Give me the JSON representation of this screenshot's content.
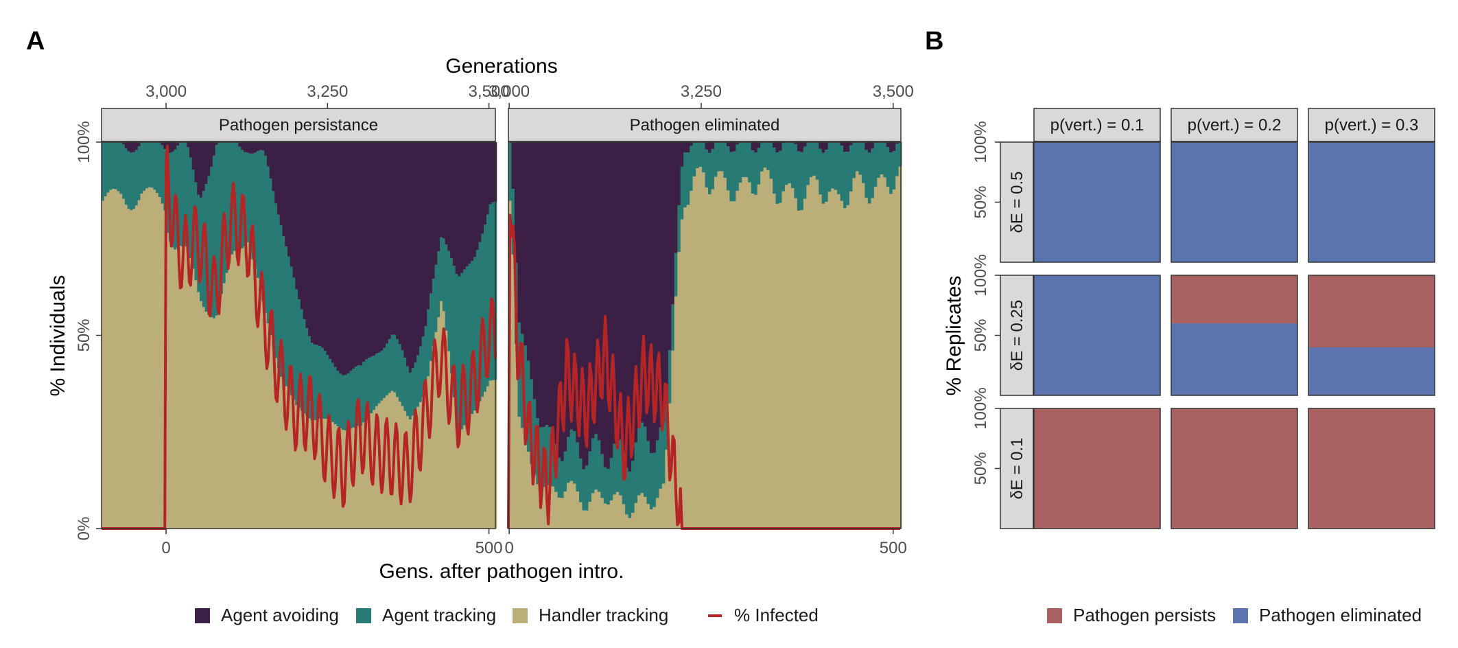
{
  "colors": {
    "agent_avoiding": "#3b1f45",
    "agent_tracking": "#287a74",
    "handler_tracking": "#bcae78",
    "infected": "#b52525",
    "other": "#d9d9d9",
    "pathogen_persists": "#a86060",
    "pathogen_eliminated": "#5c74ad",
    "strip_bg": "#d9d9d9",
    "strip_border": "#333333"
  },
  "panel_labels": [
    "A",
    "B"
  ],
  "panel_a": {
    "top_axis_title": "Generations",
    "top_ticks": [
      "3,000",
      "3,250",
      "3,500"
    ],
    "bottom_axis_title": "Gens. after pathogen intro.",
    "bottom_ticks": [
      "0",
      "500"
    ],
    "y_axis_title": "% Individuals",
    "y_ticks": [
      "0%",
      "50%",
      "100%"
    ],
    "facets": [
      "Pathogen persistance",
      "Pathogen eliminated"
    ],
    "legend": [
      {
        "key": "agent_avoiding",
        "label": "Agent avoiding",
        "kind": "square"
      },
      {
        "key": "agent_tracking",
        "label": "Agent tracking",
        "kind": "square"
      },
      {
        "key": "handler_tracking",
        "label": "Handler tracking",
        "kind": "square"
      },
      {
        "key": "infected",
        "label": "% Infected",
        "kind": "line"
      }
    ]
  },
  "panel_b": {
    "y_axis_title": "% Replicates",
    "y_ticks": [
      "50%",
      "100%"
    ],
    "col_strips": [
      "p(vert.) = 0.1",
      "p(vert.) = 0.2",
      "p(vert.) = 0.3"
    ],
    "row_strips": [
      "δE = 0.5",
      "δE = 0.25",
      "δE = 0.1"
    ],
    "legend": [
      {
        "key": "pathogen_persists",
        "label": "Pathogen persists"
      },
      {
        "key": "pathogen_eliminated",
        "label": "Pathogen eliminated"
      }
    ]
  },
  "chart_data": [
    {
      "type": "bar",
      "subtype": "stacked-100-percent-with-line",
      "panel": "A",
      "facet": "Pathogen persistance",
      "x_label_top": "Generations",
      "x_label_bottom": "Gens. after pathogen intro.",
      "y_label": "% Individuals",
      "xlim_generations": [
        2900,
        3510
      ],
      "pathogen_intro_generation": 3000,
      "ylim": [
        0,
        100
      ],
      "x": [
        2900,
        2950,
        2999,
        3000,
        3010,
        3025,
        3050,
        3075,
        3100,
        3125,
        3150,
        3175,
        3200,
        3225,
        3250,
        3275,
        3300,
        3325,
        3350,
        3375,
        3400,
        3425,
        3450,
        3475,
        3500
      ],
      "series": [
        {
          "name": "Handler tracking",
          "values": [
            85,
            87,
            85,
            80,
            75,
            72,
            60,
            55,
            70,
            78,
            55,
            40,
            32,
            28,
            28,
            26,
            26,
            32,
            36,
            28,
            35,
            62,
            25,
            30,
            38
          ]
        },
        {
          "name": "Agent tracking",
          "values": [
            15,
            13,
            15,
            20,
            25,
            28,
            25,
            45,
            30,
            22,
            40,
            40,
            30,
            20,
            15,
            16,
            14,
            15,
            14,
            12,
            18,
            15,
            40,
            40,
            45
          ]
        },
        {
          "name": "Agent avoiding",
          "values": [
            0,
            0,
            0,
            0,
            0,
            0,
            15,
            0,
            0,
            0,
            5,
            20,
            38,
            52,
            57,
            58,
            60,
            53,
            50,
            60,
            47,
            23,
            35,
            30,
            17
          ]
        },
        {
          "name": "% Infected",
          "type": "line",
          "values": [
            0,
            0,
            0,
            95,
            80,
            70,
            75,
            60,
            80,
            76,
            55,
            40,
            30,
            30,
            20,
            15,
            25,
            20,
            18,
            15,
            28,
            45,
            30,
            36,
            50
          ]
        }
      ]
    },
    {
      "type": "bar",
      "subtype": "stacked-100-percent-with-line",
      "panel": "A",
      "facet": "Pathogen eliminated",
      "x_label_top": "Generations",
      "x_label_bottom": "Gens. after pathogen intro.",
      "y_label": "% Individuals",
      "xlim_generations": [
        2999,
        3510
      ],
      "pathogen_intro_generation": 3000,
      "ylim": [
        0,
        100
      ],
      "x": [
        2999,
        3000,
        3010,
        3025,
        3050,
        3075,
        3100,
        3125,
        3150,
        3175,
        3200,
        3225,
        3250,
        3275,
        3300,
        3325,
        3350,
        3375,
        3400,
        3425,
        3450,
        3475,
        3500
      ],
      "series": [
        {
          "name": "Handler tracking",
          "values": [
            85,
            85,
            30,
            15,
            8,
            10,
            6,
            8,
            5,
            6,
            8,
            80,
            92,
            90,
            88,
            92,
            88,
            86,
            90,
            85,
            90,
            88,
            92
          ]
        },
        {
          "name": "Agent tracking",
          "values": [
            15,
            15,
            25,
            20,
            12,
            10,
            12,
            10,
            12,
            15,
            12,
            12,
            8,
            10,
            12,
            8,
            12,
            14,
            10,
            15,
            10,
            12,
            8
          ]
        },
        {
          "name": "Agent avoiding",
          "values": [
            0,
            0,
            45,
            55,
            70,
            70,
            72,
            70,
            73,
            65,
            65,
            0,
            0,
            0,
            0,
            0,
            0,
            0,
            0,
            0,
            0,
            0,
            0
          ]
        },
        {
          "name": "% Infected",
          "type": "line",
          "values": [
            0,
            95,
            50,
            25,
            10,
            40,
            30,
            45,
            20,
            40,
            35,
            0,
            0,
            0,
            0,
            0,
            0,
            0,
            0,
            0,
            0,
            0,
            0
          ]
        }
      ]
    },
    {
      "type": "bar",
      "subtype": "stacked-100-percent-facet-grid",
      "panel": "B",
      "y_label": "% Replicates",
      "ylim": [
        0,
        100
      ],
      "columns": [
        "p(vert.) = 0.1",
        "p(vert.) = 0.2",
        "p(vert.) = 0.3"
      ],
      "rows": [
        "δE = 0.5",
        "δE = 0.25",
        "δE = 0.1"
      ],
      "cells": [
        {
          "row": "δE = 0.5",
          "col": "p(vert.) = 0.1",
          "pathogen_persists": 0,
          "pathogen_eliminated": 100
        },
        {
          "row": "δE = 0.5",
          "col": "p(vert.) = 0.2",
          "pathogen_persists": 0,
          "pathogen_eliminated": 100
        },
        {
          "row": "δE = 0.5",
          "col": "p(vert.) = 0.3",
          "pathogen_persists": 0,
          "pathogen_eliminated": 100
        },
        {
          "row": "δE = 0.25",
          "col": "p(vert.) = 0.1",
          "pathogen_persists": 0,
          "pathogen_eliminated": 100
        },
        {
          "row": "δE = 0.25",
          "col": "p(vert.) = 0.2",
          "pathogen_persists": 40,
          "pathogen_eliminated": 60
        },
        {
          "row": "δE = 0.25",
          "col": "p(vert.) = 0.3",
          "pathogen_persists": 60,
          "pathogen_eliminated": 40
        },
        {
          "row": "δE = 0.1",
          "col": "p(vert.) = 0.1",
          "pathogen_persists": 100,
          "pathogen_eliminated": 0
        },
        {
          "row": "δE = 0.1",
          "col": "p(vert.) = 0.2",
          "pathogen_persists": 100,
          "pathogen_eliminated": 0
        },
        {
          "row": "δE = 0.1",
          "col": "p(vert.) = 0.3",
          "pathogen_persists": 100,
          "pathogen_eliminated": 0
        }
      ],
      "legend": [
        "Pathogen persists",
        "Pathogen eliminated"
      ],
      "legend_position": "bottom"
    }
  ]
}
